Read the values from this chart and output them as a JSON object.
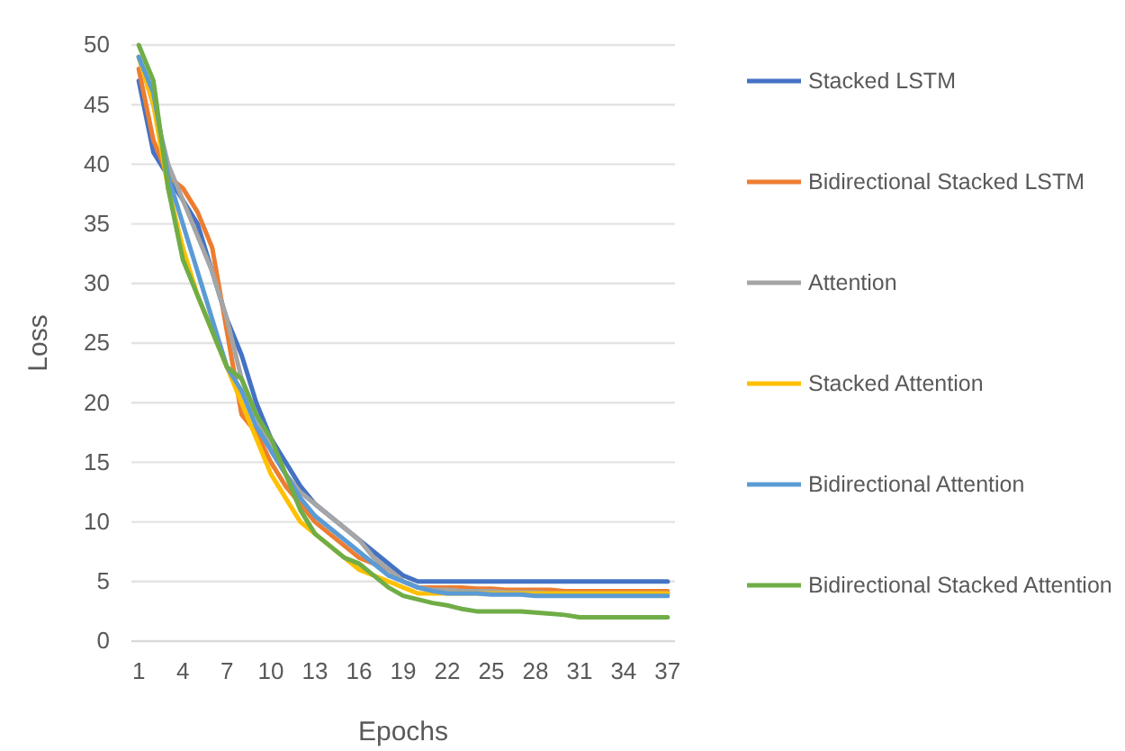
{
  "chart_data": {
    "type": "line",
    "xlabel": "Epochs",
    "ylabel": "Loss",
    "x": [
      1,
      2,
      3,
      4,
      5,
      6,
      7,
      8,
      9,
      10,
      11,
      12,
      13,
      14,
      15,
      16,
      17,
      18,
      19,
      20,
      21,
      22,
      23,
      24,
      25,
      26,
      27,
      28,
      29,
      30,
      31,
      32,
      33,
      34,
      35,
      36,
      37
    ],
    "xlim": [
      0.5,
      37.5
    ],
    "xticks": [
      1,
      4,
      7,
      10,
      13,
      16,
      19,
      22,
      25,
      28,
      31,
      34,
      37
    ],
    "ylim": [
      0,
      50
    ],
    "yticks": [
      0,
      5,
      10,
      15,
      20,
      25,
      30,
      35,
      40,
      45,
      50
    ],
    "grid": "y",
    "legend": "right",
    "marker": "none",
    "line_style": "solid",
    "series": [
      {
        "name": "Stacked LSTM",
        "color": "#4472c4",
        "values": [
          47,
          41,
          39,
          37,
          35,
          31,
          27,
          24,
          20,
          17,
          15,
          13,
          11.5,
          10.5,
          9.5,
          8.5,
          7.5,
          6.5,
          5.5,
          5,
          5,
          5,
          5,
          5,
          5,
          5,
          5,
          5,
          5,
          5,
          5,
          5,
          5,
          5,
          5,
          5,
          5
        ]
      },
      {
        "name": "Bidirectional Stacked LSTM",
        "color": "#ed7d31",
        "values": [
          48,
          42,
          39,
          38,
          36,
          33,
          26,
          19,
          17.5,
          15,
          13,
          11.5,
          10,
          9,
          8,
          7,
          6.5,
          6,
          5,
          4.5,
          4.5,
          4.5,
          4.5,
          4.4,
          4.4,
          4.3,
          4.3,
          4.3,
          4.3,
          4.2,
          4.2,
          4.2,
          4.2,
          4.2,
          4.2,
          4.2,
          4.2
        ]
      },
      {
        "name": "Attention",
        "color": "#a5a5a5",
        "values": [
          49,
          45,
          40,
          37,
          34,
          31,
          27,
          22,
          19,
          16,
          14,
          12.5,
          11.5,
          10.5,
          9.5,
          8.5,
          7,
          6,
          5,
          4.5,
          4.3,
          4.3,
          4.2,
          4.2,
          4.2,
          4.1,
          4.1,
          4.1,
          4,
          4,
          4,
          4,
          4,
          4,
          4,
          4,
          4
        ]
      },
      {
        "name": "Stacked Attention",
        "color": "#ffc000",
        "values": [
          49,
          45,
          38,
          33,
          29,
          26,
          23,
          20,
          17,
          14,
          12,
          10,
          9,
          8,
          7,
          6,
          5.5,
          5,
          4.5,
          4,
          4,
          4,
          4,
          4,
          4,
          4,
          4,
          4,
          4,
          4,
          4,
          4,
          4,
          4,
          4,
          4,
          4
        ]
      },
      {
        "name": "Bidirectional Attention",
        "color": "#5b9bd5",
        "values": [
          49,
          46,
          39,
          35,
          31,
          27,
          23,
          21,
          18,
          16,
          14,
          12,
          10.5,
          9.5,
          8.5,
          7.5,
          6.5,
          5.5,
          5,
          4.5,
          4.2,
          4,
          4,
          4,
          3.9,
          3.9,
          3.9,
          3.8,
          3.8,
          3.8,
          3.8,
          3.8,
          3.8,
          3.8,
          3.8,
          3.8,
          3.8
        ]
      },
      {
        "name": "Bidirectional Stacked Attention",
        "color": "#70ad47",
        "values": [
          50,
          47,
          38,
          32,
          29,
          26,
          23,
          22,
          19,
          17,
          14,
          11,
          9,
          8,
          7,
          6.5,
          5.5,
          4.5,
          3.8,
          3.5,
          3.2,
          3,
          2.7,
          2.5,
          2.5,
          2.5,
          2.5,
          2.4,
          2.3,
          2.2,
          2,
          2,
          2,
          2,
          2,
          2,
          2
        ]
      }
    ]
  }
}
